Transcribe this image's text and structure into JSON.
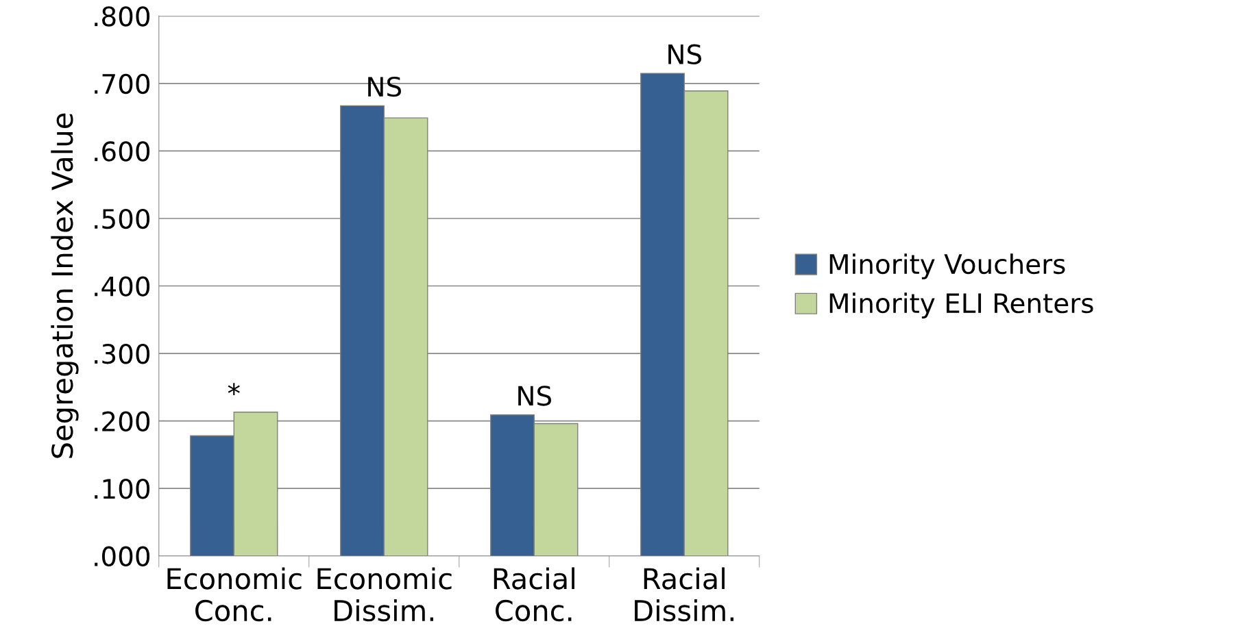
{
  "chart_data": {
    "type": "bar",
    "ylabel": "Segregation Index Value",
    "categories": [
      "Economic\nConc.",
      "Economic\nDissim.",
      "Racial\nConc.",
      "Racial\nDissim."
    ],
    "series": [
      {
        "name": "Minority Vouchers",
        "color": "#376092",
        "values": [
          0.178,
          0.667,
          0.209,
          0.715
        ]
      },
      {
        "name": "Minority ELI Renters",
        "color": "#c3d69b",
        "values": [
          0.213,
          0.649,
          0.196,
          0.689
        ]
      }
    ],
    "ylim": [
      0,
      0.8
    ],
    "yticks": [
      {
        "value": 0,
        "label": ".000"
      },
      {
        "value": 0.1,
        "label": ".100"
      },
      {
        "value": 0.2,
        "label": ".200"
      },
      {
        "value": 0.3,
        "label": ".300"
      },
      {
        "value": 0.4,
        "label": ".400"
      },
      {
        "value": 0.5,
        "label": ".500"
      },
      {
        "value": 0.6,
        "label": ".600"
      },
      {
        "value": 0.7,
        "label": ".700"
      },
      {
        "value": 0.8,
        "label": ".800"
      }
    ],
    "grid": "y",
    "legend": "right",
    "annotations": [
      {
        "text": "*",
        "x": "Economic\nConc.",
        "y": 0.213
      },
      {
        "text": "NS",
        "x": "Economic\nDissim.",
        "y": 0.667
      },
      {
        "text": "NS",
        "x": "Racial\nConc.",
        "y": 0.209
      },
      {
        "text": "NS",
        "x": "Racial\nDissim.",
        "y": 0.715
      }
    ]
  }
}
